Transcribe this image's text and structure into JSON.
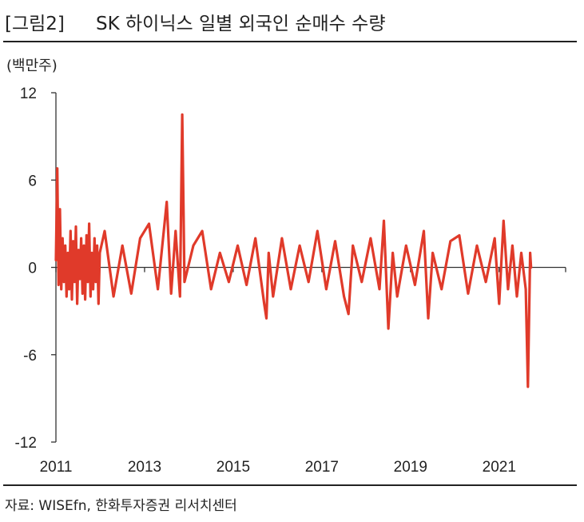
{
  "header": {
    "label": "[그림2]",
    "title": "SK 하이닉스 일별 외국인 순매수 수량"
  },
  "unit": "(백만주)",
  "source": "자료: WISEfn, 한화투자증권 리서치센터",
  "colors": {
    "series": "#e03a2a",
    "axis": "#333333",
    "text": "#222222"
  },
  "chart_data": {
    "type": "line",
    "title": "SK 하이닉스 일별 외국인 순매수 수량",
    "ylabel": "(백만주)",
    "xlabel": "",
    "ylim": [
      -12,
      12
    ],
    "yticks": [
      12,
      6,
      0,
      -6,
      -12
    ],
    "xlim": [
      2011.0,
      2022.5
    ],
    "xticks": [
      "2011",
      "2013",
      "2015",
      "2017",
      "2019",
      "2021"
    ],
    "grid": false,
    "legend": "none",
    "series": [
      {
        "name": "",
        "x": [
          2011.0,
          2011.03,
          2011.06,
          2011.09,
          2011.12,
          2011.15,
          2011.18,
          2011.21,
          2011.24,
          2011.27,
          2011.3,
          2011.33,
          2011.36,
          2011.39,
          2011.42,
          2011.45,
          2011.48,
          2011.51,
          2011.54,
          2011.57,
          2011.6,
          2011.63,
          2011.66,
          2011.69,
          2011.72,
          2011.75,
          2011.78,
          2011.81,
          2011.84,
          2011.87,
          2011.9,
          2011.93,
          2011.96,
          2011.99,
          2012.1,
          2012.3,
          2012.5,
          2012.7,
          2012.9,
          2013.1,
          2013.3,
          2013.5,
          2013.6,
          2013.7,
          2013.8,
          2013.85,
          2013.9,
          2014.1,
          2014.3,
          2014.5,
          2014.7,
          2014.9,
          2015.1,
          2015.3,
          2015.5,
          2015.7,
          2015.75,
          2015.8,
          2015.9,
          2016.1,
          2016.3,
          2016.5,
          2016.7,
          2016.9,
          2017.1,
          2017.3,
          2017.5,
          2017.6,
          2017.7,
          2017.9,
          2018.1,
          2018.3,
          2018.4,
          2018.5,
          2018.6,
          2018.7,
          2018.9,
          2019.1,
          2019.3,
          2019.4,
          2019.5,
          2019.7,
          2019.9,
          2020.1,
          2020.3,
          2020.5,
          2020.7,
          2020.9,
          2021.0,
          2021.1,
          2021.2,
          2021.3,
          2021.4,
          2021.5,
          2021.6,
          2021.65,
          2021.7,
          2021.72
        ],
        "values": [
          0.5,
          6.8,
          -1.2,
          4.0,
          -1.5,
          2.0,
          -1.0,
          1.5,
          -2.0,
          1.0,
          -1.5,
          2.5,
          -2.2,
          1.8,
          -1.0,
          2.8,
          -2.5,
          1.2,
          -0.8,
          2.0,
          -1.8,
          1.5,
          -2.2,
          2.2,
          -1.0,
          3.0,
          -2.0,
          1.0,
          -1.5,
          2.0,
          -1.0,
          1.5,
          -2.5,
          1.0,
          2.5,
          -2.0,
          1.5,
          -1.8,
          2.0,
          3.0,
          -1.5,
          4.5,
          -1.8,
          2.5,
          -2.0,
          10.5,
          -1.0,
          1.5,
          2.5,
          -1.5,
          1.0,
          -1.0,
          1.5,
          -1.2,
          2.0,
          -2.5,
          -3.5,
          1.0,
          -2.0,
          2.0,
          -1.5,
          1.5,
          -1.0,
          2.5,
          -1.5,
          1.8,
          -2.0,
          -3.2,
          1.5,
          -1.0,
          2.0,
          -1.5,
          3.2,
          -4.2,
          1.0,
          -2.0,
          1.5,
          -1.2,
          2.5,
          -3.5,
          1.0,
          -1.5,
          1.8,
          2.2,
          -1.8,
          1.5,
          -1.0,
          2.0,
          -2.5,
          3.2,
          -1.5,
          1.5,
          -2.0,
          1.0,
          -1.5,
          -8.2,
          1.0,
          0.0
        ]
      }
    ]
  }
}
